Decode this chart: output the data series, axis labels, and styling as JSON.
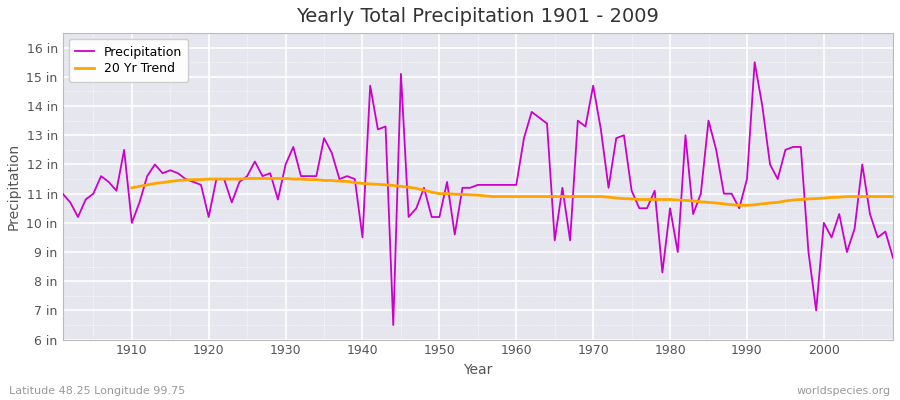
{
  "title": "Yearly Total Precipitation 1901 - 2009",
  "xlabel": "Year",
  "ylabel": "Precipitation",
  "subtitle_lat": "Latitude 48.25 Longitude 99.75",
  "credit": "worldspecies.org",
  "years": [
    1901,
    1902,
    1903,
    1904,
    1905,
    1906,
    1907,
    1908,
    1909,
    1910,
    1911,
    1912,
    1913,
    1914,
    1915,
    1916,
    1917,
    1918,
    1919,
    1920,
    1921,
    1922,
    1923,
    1924,
    1925,
    1926,
    1927,
    1928,
    1929,
    1930,
    1931,
    1932,
    1933,
    1934,
    1935,
    1936,
    1937,
    1938,
    1939,
    1940,
    1941,
    1942,
    1943,
    1944,
    1945,
    1946,
    1947,
    1948,
    1949,
    1950,
    1951,
    1952,
    1953,
    1954,
    1955,
    1956,
    1957,
    1958,
    1959,
    1960,
    1961,
    1962,
    1963,
    1964,
    1965,
    1966,
    1967,
    1968,
    1969,
    1970,
    1971,
    1972,
    1973,
    1974,
    1975,
    1976,
    1977,
    1978,
    1979,
    1980,
    1981,
    1982,
    1983,
    1984,
    1985,
    1986,
    1987,
    1988,
    1989,
    1990,
    1991,
    1992,
    1993,
    1994,
    1995,
    1996,
    1997,
    1998,
    1999,
    2000,
    2001,
    2002,
    2003,
    2004,
    2005,
    2006,
    2007,
    2008,
    2009
  ],
  "precip": [
    11.0,
    10.7,
    10.2,
    10.8,
    11.0,
    11.6,
    11.4,
    11.1,
    12.5,
    10.0,
    10.7,
    11.6,
    12.0,
    11.7,
    11.8,
    11.7,
    11.5,
    11.4,
    11.3,
    10.2,
    11.5,
    11.5,
    10.7,
    11.4,
    11.6,
    12.1,
    11.6,
    11.7,
    10.8,
    12.0,
    12.6,
    11.6,
    11.6,
    11.6,
    12.9,
    12.4,
    11.5,
    11.6,
    11.5,
    9.5,
    14.7,
    13.2,
    13.3,
    6.5,
    15.1,
    10.2,
    10.5,
    11.2,
    10.2,
    10.2,
    11.4,
    9.6,
    11.2,
    11.2,
    11.3,
    11.3,
    11.3,
    11.3,
    11.3,
    11.3,
    12.9,
    13.8,
    13.6,
    13.4,
    9.4,
    11.2,
    9.4,
    13.5,
    13.3,
    14.7,
    13.2,
    11.2,
    12.9,
    13.0,
    11.1,
    10.5,
    10.5,
    11.1,
    8.3,
    10.5,
    9.0,
    13.0,
    10.3,
    11.0,
    13.5,
    12.5,
    11.0,
    11.0,
    10.5,
    11.5,
    15.5,
    14.0,
    12.0,
    11.5,
    12.5,
    12.6,
    12.6,
    9.0,
    7.0,
    10.0,
    9.5,
    10.3,
    9.0,
    9.8,
    12.0,
    10.3,
    9.5,
    9.7,
    8.8
  ],
  "trend_start_year": 1910,
  "trend": [
    11.2,
    11.25,
    11.3,
    11.35,
    11.38,
    11.42,
    11.45,
    11.47,
    11.48,
    11.48,
    11.5,
    11.5,
    11.5,
    11.5,
    11.5,
    11.52,
    11.52,
    11.52,
    11.52,
    11.52,
    11.52,
    11.5,
    11.5,
    11.48,
    11.48,
    11.45,
    11.45,
    11.43,
    11.42,
    11.38,
    11.35,
    11.33,
    11.32,
    11.3,
    11.28,
    11.25,
    11.22,
    11.18,
    11.12,
    11.05,
    11.0,
    11.0,
    10.98,
    10.97,
    10.96,
    10.95,
    10.92,
    10.9,
    10.9,
    10.9,
    10.9,
    10.9,
    10.9,
    10.9,
    10.9,
    10.9,
    10.9,
    10.9,
    10.9,
    10.9,
    10.9,
    10.9,
    10.88,
    10.85,
    10.83,
    10.82,
    10.8,
    10.8,
    10.8,
    10.8,
    10.8,
    10.78,
    10.77,
    10.75,
    10.72,
    10.7,
    10.68,
    10.65,
    10.62,
    10.6,
    10.6,
    10.62,
    10.65,
    10.68,
    10.7,
    10.75,
    10.78,
    10.8,
    10.82,
    10.83,
    10.85,
    10.87,
    10.88,
    10.9,
    10.9,
    10.9,
    10.9,
    10.9,
    10.9,
    10.9
  ],
  "precip_color": "#CC00CC",
  "trend_color": "#FFA500",
  "fig_bg_color": "#FFFFFF",
  "plot_bg_color": "#E6E6EE",
  "grid_color": "#FFFFFF",
  "ylim": [
    6,
    16.5
  ],
  "yticks": [
    6,
    7,
    8,
    9,
    10,
    11,
    12,
    13,
    14,
    15,
    16
  ],
  "ytick_labels": [
    "6 in",
    "7 in",
    "8 in",
    "9 in",
    "10 in",
    "11 in",
    "12 in",
    "13 in",
    "14 in",
    "15 in",
    "16 in"
  ],
  "xlim": [
    1901,
    2009
  ],
  "xticks": [
    1910,
    1920,
    1930,
    1940,
    1950,
    1960,
    1970,
    1980,
    1990,
    2000
  ],
  "title_fontsize": 14,
  "label_fontsize": 10,
  "tick_fontsize": 9
}
